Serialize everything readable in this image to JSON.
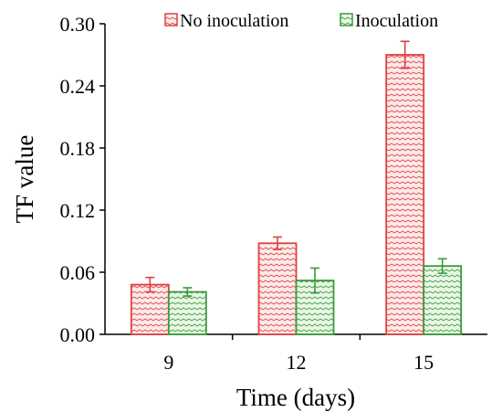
{
  "colors": {
    "no_inoculation": "#e0403f",
    "inoculation": "#3a9a3a"
  },
  "chart_data": {
    "type": "bar",
    "title": "",
    "xlabel": "Time (days)",
    "ylabel": "TF value",
    "categories": [
      "9",
      "12",
      "15"
    ],
    "ylim": [
      0,
      0.3
    ],
    "yticks": [
      "0.00",
      "0.06",
      "0.12",
      "0.18",
      "0.24",
      "0.30"
    ],
    "grid": false,
    "legend_position": "top",
    "series": [
      {
        "name": "No inoculation",
        "values": [
          0.048,
          0.088,
          0.27
        ],
        "errors": [
          0.007,
          0.006,
          0.013
        ]
      },
      {
        "name": "Inoculation",
        "values": [
          0.041,
          0.052,
          0.066
        ],
        "errors": [
          0.004,
          0.012,
          0.007
        ]
      }
    ]
  }
}
